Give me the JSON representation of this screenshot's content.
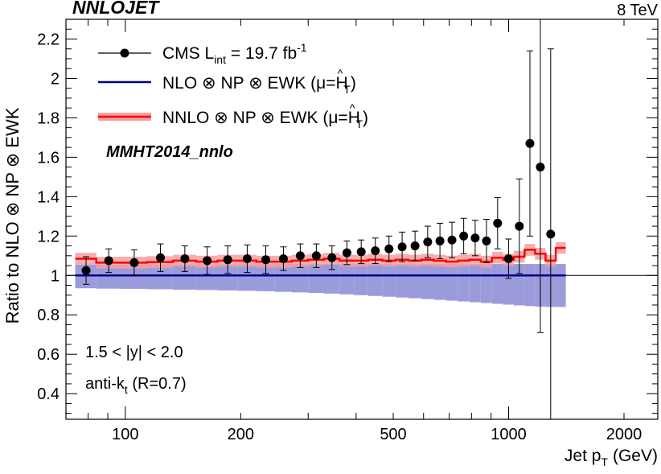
{
  "chart_data": {
    "type": "scatter",
    "header_left": "NNLOJET",
    "header_right": "8 TeV",
    "title": "NNLOJET",
    "xlabel": "Jet p",
    "xlabel_sub": "T",
    "xlabel_unit": "(GeV)",
    "ylabel": "Ratio to NLO ⊗ NP ⊗ EWK",
    "xscale": "log",
    "xlim": [
      70,
      2450
    ],
    "ylim": [
      0.27,
      2.3
    ],
    "x_ticks": [
      {
        "value": 100,
        "label": "100"
      },
      {
        "value": 200,
        "label": "200"
      },
      {
        "value": 500,
        "label": "500"
      },
      {
        "value": 1000,
        "label": "1000"
      },
      {
        "value": 2000,
        "label": "2000"
      }
    ],
    "y_ticks": [
      {
        "value": 0.4,
        "label": "0.4"
      },
      {
        "value": 0.6,
        "label": "0.6"
      },
      {
        "value": 0.8,
        "label": "0.8"
      },
      {
        "value": 1.0,
        "label": "1"
      },
      {
        "value": 1.2,
        "label": "1.2"
      },
      {
        "value": 1.4,
        "label": "1.4"
      },
      {
        "value": 1.6,
        "label": "1.6"
      },
      {
        "value": 1.8,
        "label": "1.8"
      },
      {
        "value": 2.0,
        "label": "2"
      },
      {
        "value": 2.2,
        "label": "2.2"
      }
    ],
    "legend_position": "top-left",
    "legend": [
      {
        "label": "CMS L",
        "sub": "int",
        "rest": " = 19.7 fb",
        "sup": "-1"
      },
      {
        "label": "NLO ⊗ NP ⊗ EWK (μ=",
        "mu": "H",
        "mu_hat": "^",
        "mu_sub": "T",
        "close": ")"
      },
      {
        "label": "NNLO ⊗ NP ⊗ EWK (μ=",
        "mu": "H",
        "mu_hat": "^",
        "mu_sub": "T",
        "close": ")"
      }
    ],
    "pdf_label": "MMHT2014_nnlo",
    "annotations": [
      {
        "text": "1.5 < |y| < 2.0"
      },
      {
        "text": "anti-k",
        "sub": "t",
        "rest": " (R=0.7)"
      }
    ],
    "colors": {
      "data": "#000000",
      "nlo": "#00008b",
      "nlo_band": "#9b9bdc",
      "nnlo": "#ff0000",
      "nnlo_band": "#f3a0a0"
    },
    "bin_edges": [
      74,
      84,
      97,
      114,
      133,
      153,
      174,
      196,
      220,
      245,
      272,
      300,
      330,
      362,
      395,
      430,
      468,
      507,
      548,
      592,
      638,
      686,
      737,
      790,
      846,
      905,
      967,
      1032,
      1101,
      1172,
      1248,
      1327,
      1410
    ],
    "nlo_band_lower": [
      0.935,
      0.933,
      0.932,
      0.93,
      0.928,
      0.926,
      0.924,
      0.922,
      0.92,
      0.917,
      0.914,
      0.911,
      0.908,
      0.904,
      0.9,
      0.896,
      0.892,
      0.888,
      0.884,
      0.88,
      0.876,
      0.872,
      0.868,
      0.864,
      0.86,
      0.856,
      0.852,
      0.848,
      0.845,
      0.842,
      0.84,
      0.84
    ],
    "nlo_band_upper": [
      1.055,
      1.055,
      1.055,
      1.056,
      1.056,
      1.056,
      1.057,
      1.057,
      1.057,
      1.058,
      1.058,
      1.058,
      1.058,
      1.058,
      1.058,
      1.058,
      1.058,
      1.058,
      1.058,
      1.058,
      1.058,
      1.058,
      1.058,
      1.058,
      1.058,
      1.058,
      1.058,
      1.058,
      1.058,
      1.058,
      1.058,
      1.058
    ],
    "nnlo_central": [
      1.085,
      1.065,
      1.065,
      1.068,
      1.075,
      1.07,
      1.075,
      1.075,
      1.07,
      1.07,
      1.075,
      1.08,
      1.085,
      1.075,
      1.075,
      1.08,
      1.075,
      1.08,
      1.075,
      1.08,
      1.075,
      1.07,
      1.075,
      1.08,
      1.07,
      1.09,
      1.08,
      1.095,
      1.13,
      1.11,
      1.075,
      1.14
    ],
    "nnlo_half_width": [
      0.03,
      0.03,
      0.03,
      0.03,
      0.03,
      0.03,
      0.03,
      0.03,
      0.03,
      0.03,
      0.03,
      0.03,
      0.03,
      0.03,
      0.03,
      0.03,
      0.03,
      0.03,
      0.03,
      0.03,
      0.03,
      0.03,
      0.03,
      0.03,
      0.03,
      0.03,
      0.03,
      0.03,
      0.03,
      0.03,
      0.03,
      0.03
    ],
    "data_points": [
      {
        "x": 79,
        "y": 1.025,
        "err": 0.07
      },
      {
        "x": 90.5,
        "y": 1.075,
        "err": 0.06
      },
      {
        "x": 105.5,
        "y": 1.065,
        "err": 0.065
      },
      {
        "x": 123.5,
        "y": 1.09,
        "err": 0.07
      },
      {
        "x": 143,
        "y": 1.085,
        "err": 0.065
      },
      {
        "x": 163.5,
        "y": 1.075,
        "err": 0.07
      },
      {
        "x": 185,
        "y": 1.08,
        "err": 0.07
      },
      {
        "x": 208,
        "y": 1.085,
        "err": 0.07
      },
      {
        "x": 232.5,
        "y": 1.08,
        "err": 0.07
      },
      {
        "x": 258.5,
        "y": 1.085,
        "err": 0.06
      },
      {
        "x": 286,
        "y": 1.1,
        "err": 0.06
      },
      {
        "x": 315,
        "y": 1.1,
        "err": 0.06
      },
      {
        "x": 346,
        "y": 1.09,
        "err": 0.06
      },
      {
        "x": 378.5,
        "y": 1.115,
        "err": 0.06
      },
      {
        "x": 412.5,
        "y": 1.12,
        "err": 0.06
      },
      {
        "x": 449,
        "y": 1.125,
        "err": 0.065
      },
      {
        "x": 487.5,
        "y": 1.135,
        "err": 0.065
      },
      {
        "x": 527.5,
        "y": 1.145,
        "err": 0.075
      },
      {
        "x": 570,
        "y": 1.15,
        "err": 0.075
      },
      {
        "x": 615,
        "y": 1.17,
        "err": 0.08
      },
      {
        "x": 662,
        "y": 1.175,
        "err": 0.09
      },
      {
        "x": 711.5,
        "y": 1.18,
        "err": 0.09
      },
      {
        "x": 763.5,
        "y": 1.2,
        "err": 0.09
      },
      {
        "x": 818,
        "y": 1.19,
        "err": 0.09
      },
      {
        "x": 875.5,
        "y": 1.175,
        "err": 0.11
      },
      {
        "x": 936,
        "y": 1.265,
        "err": 0.13
      },
      {
        "x": 999.5,
        "y": 1.085,
        "err": 0.1
      },
      {
        "x": 1066.5,
        "y": 1.25,
        "err": 0.24
      },
      {
        "x": 1136.5,
        "y": 1.67,
        "err": 0.47
      },
      {
        "x": 1210,
        "y": 1.55,
        "err": 0.84
      },
      {
        "x": 1287.5,
        "y": 1.21,
        "err": 0.94
      }
    ]
  }
}
